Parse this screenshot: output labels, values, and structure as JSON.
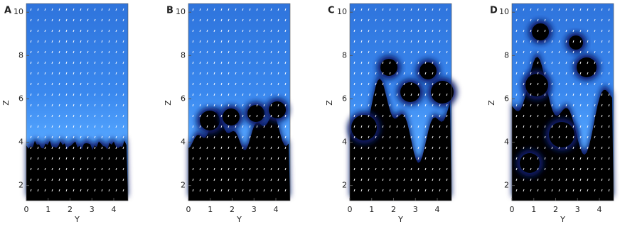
{
  "chart_data": [
    {
      "type": "field",
      "title": "A",
      "xlabel": "Y",
      "ylabel": "Z",
      "xlim": [
        0,
        4.65
      ],
      "ylim": [
        1.3,
        10.4
      ],
      "xticks": [
        0,
        1,
        2,
        3,
        4
      ],
      "yticks": [
        2,
        4,
        6,
        8,
        10
      ]
    },
    {
      "type": "field",
      "title": "B",
      "xlabel": "Y",
      "ylabel": "Z",
      "xlim": [
        0,
        4.65
      ],
      "ylim": [
        1.3,
        10.4
      ],
      "xticks": [
        0,
        1,
        2,
        3,
        4
      ],
      "yticks": [
        2,
        4,
        6,
        8,
        10
      ]
    },
    {
      "type": "field",
      "title": "C",
      "xlabel": "Y",
      "ylabel": "Z",
      "xlim": [
        0,
        4.65
      ],
      "ylim": [
        1.3,
        10.4
      ],
      "xticks": [
        0,
        1,
        2,
        3,
        4
      ],
      "yticks": [
        2,
        4,
        6,
        8,
        10
      ]
    },
    {
      "type": "field",
      "title": "D",
      "xlabel": "Y",
      "ylabel": "Z",
      "xlim": [
        0,
        4.65
      ],
      "ylim": [
        1.3,
        10.4
      ],
      "xticks": [
        0,
        1,
        2,
        3,
        4
      ],
      "yticks": [
        2,
        4,
        6,
        8,
        10
      ]
    }
  ]
}
